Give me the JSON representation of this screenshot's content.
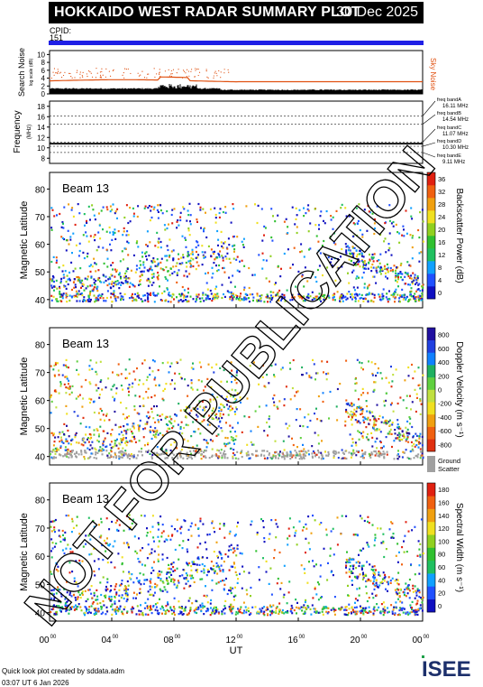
{
  "header": {
    "title": "HOKKAIDO WEST RADAR SUMMARY PLOT",
    "date": "30 Dec 2025"
  },
  "cpid": {
    "label": "CPID:",
    "value": "151"
  },
  "noise_panel": {
    "ylabel": "Search Noise",
    "ylabel2": "log scale (dB)",
    "right_label": "Sky Noise",
    "ticks": [
      "0",
      "2",
      "4",
      "6",
      "8",
      "10"
    ]
  },
  "freq_panel": {
    "ylabel": "Frequency",
    "unit": "(MHz)",
    "ticks": [
      "8",
      "10",
      "12",
      "14",
      "16",
      "18"
    ],
    "bands": [
      {
        "name": "freq bandA",
        "value": "16.11 MHz"
      },
      {
        "name": "freq bandB",
        "value": "14.54 MHz"
      },
      {
        "name": "freq bandC",
        "value": "11.07 MHz"
      },
      {
        "name": "freq bandD",
        "value": "10.30 MHz"
      },
      {
        "name": "freq bandE",
        "value": "9.11 MHz"
      }
    ]
  },
  "panels": [
    {
      "beam": "Beam 13",
      "ylabel": "Magnetic Latitude",
      "cbar_label": "Backscatter Power (dB)",
      "cbar_ticks": [
        "0",
        "4",
        "8",
        "12",
        "16",
        "20",
        "24",
        "28",
        "32",
        "36"
      ]
    },
    {
      "beam": "Beam 13",
      "ylabel": "Magnetic Latitude",
      "cbar_label": "Doppler Velocity (m s⁻¹)",
      "cbar_ticks": [
        "-800",
        "-600",
        "-400",
        "-200",
        "0",
        "200",
        "400",
        "600",
        "800"
      ],
      "ground_label": "Ground",
      "ground_label2": "Scatter"
    },
    {
      "beam": "Beam 13",
      "ylabel": "Magnetic Latitude",
      "cbar_label": "Spectral Width (m s⁻¹)",
      "cbar_ticks": [
        "0",
        "20",
        "40",
        "60",
        "80",
        "100",
        "120",
        "140",
        "160",
        "180"
      ]
    }
  ],
  "lat_ticks": [
    "40",
    "50",
    "60",
    "70",
    "80"
  ],
  "x_axis": {
    "label": "UT",
    "ticks": [
      "00",
      "04",
      "08",
      "12",
      "16",
      "20",
      "00"
    ],
    "sup": "00"
  },
  "watermark": "NOT FOR PUBLICATION",
  "footer": {
    "credit": "Quick look plot created by sddata.adm",
    "time": "03:07 UT  6 Jan 2026"
  },
  "logo": "ISEE",
  "colors": {
    "beam_title_bar": "#1f1fe6",
    "sky_noise": "#e05010",
    "ground_scatter": "#a0a0a0"
  },
  "chart_data": [
    {
      "type": "heatmap",
      "title": "Backscatter Power",
      "x": "UT 00-24",
      "y_range": [
        38,
        85
      ],
      "c_range": [
        0,
        38
      ]
    },
    {
      "type": "heatmap",
      "title": "Doppler Velocity",
      "x": "UT 00-24",
      "y_range": [
        38,
        85
      ],
      "c_range": [
        -900,
        900
      ]
    },
    {
      "type": "heatmap",
      "title": "Spectral Width",
      "x": "UT 00-24",
      "y_range": [
        38,
        85
      ],
      "c_range": [
        0,
        190
      ]
    }
  ]
}
